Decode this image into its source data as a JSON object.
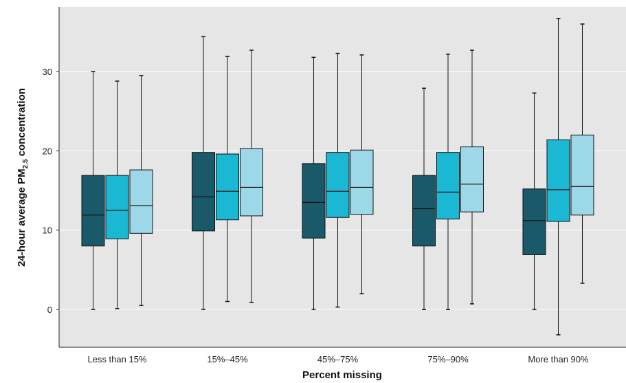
{
  "chart_data": {
    "type": "boxplot",
    "xlabel": "Percent missing",
    "ylabel_main": "24-hour average PM",
    "ylabel_sub": "2.5",
    "ylabel_tail": " concentration",
    "ylim": [
      -5,
      38
    ],
    "yticks": [
      0,
      10,
      20,
      30
    ],
    "grid": true,
    "categories": [
      "Less than 15%",
      "15%–45%",
      "45%–75%",
      "75%–90%",
      "More than 90%"
    ],
    "series_colors": [
      "#19596a",
      "#1ab8d2",
      "#9dd8e8"
    ],
    "boxes": [
      [
        {
          "min": 0,
          "q1": 8,
          "median": 11.9,
          "q3": 16.9,
          "max": 30
        },
        {
          "min": 0.1,
          "q1": 8.9,
          "median": 12.5,
          "q3": 16.9,
          "max": 28.8
        },
        {
          "min": 0.5,
          "q1": 9.6,
          "median": 13.1,
          "q3": 17.6,
          "max": 29.5
        }
      ],
      [
        {
          "min": 0,
          "q1": 9.9,
          "median": 14.2,
          "q3": 19.8,
          "max": 34.4
        },
        {
          "min": 1,
          "q1": 11.3,
          "median": 14.9,
          "q3": 19.6,
          "max": 31.9
        },
        {
          "min": 0.9,
          "q1": 11.8,
          "median": 15.4,
          "q3": 20.3,
          "max": 32.7
        }
      ],
      [
        {
          "min": 0,
          "q1": 9,
          "median": 13.5,
          "q3": 18.4,
          "max": 31.8
        },
        {
          "min": 0.3,
          "q1": 11.6,
          "median": 14.9,
          "q3": 19.8,
          "max": 32.3
        },
        {
          "min": 2,
          "q1": 12,
          "median": 15.4,
          "q3": 20.1,
          "max": 32.1
        }
      ],
      [
        {
          "min": 0,
          "q1": 8,
          "median": 12.7,
          "q3": 16.9,
          "max": 27.9
        },
        {
          "min": 0,
          "q1": 11.4,
          "median": 14.8,
          "q3": 19.8,
          "max": 32.2
        },
        {
          "min": 0.7,
          "q1": 12.3,
          "median": 15.8,
          "q3": 20.5,
          "max": 32.7
        }
      ],
      [
        {
          "min": 0,
          "q1": 6.9,
          "median": 11.2,
          "q3": 15.2,
          "max": 27.3
        },
        {
          "min": -3.2,
          "q1": 11.1,
          "median": 15.1,
          "q3": 21.4,
          "max": 36.7
        },
        {
          "min": 3.3,
          "q1": 11.9,
          "median": 15.5,
          "q3": 22,
          "max": 36
        }
      ]
    ]
  }
}
